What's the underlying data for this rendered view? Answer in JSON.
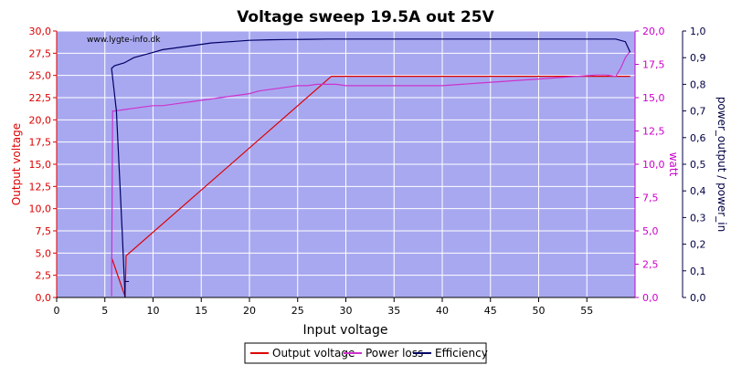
{
  "chart_data": {
    "type": "line",
    "title": "Voltage sweep 19.5A out 25V",
    "watermark": "www.lygte-info.dk",
    "xlabel": "Input voltage",
    "ylabel_left": "Output voltage",
    "ylabel_right1": "watt",
    "ylabel_right2": "power_output / power_in",
    "xlim": [
      0,
      60
    ],
    "xticks": [
      0,
      5,
      10,
      15,
      20,
      25,
      30,
      35,
      40,
      45,
      50,
      55
    ],
    "ylim_left": [
      0,
      30
    ],
    "yticks_left": [
      "0,0",
      "2,5",
      "5,0",
      "7,5",
      "10,0",
      "12,5",
      "15,0",
      "17,5",
      "20,0",
      "22,5",
      "25,0",
      "27,5",
      "30,0"
    ],
    "ylim_right1": [
      0,
      20
    ],
    "yticks_right1": [
      "0,0",
      "2,5",
      "5,0",
      "7,5",
      "10,0",
      "12,5",
      "15,0",
      "17,5",
      "20,0"
    ],
    "ylim_right2": [
      0,
      1
    ],
    "yticks_right2": [
      "0,0",
      "0,1",
      "0,2",
      "0,3",
      "0,4",
      "0,5",
      "0,6",
      "0,7",
      "0,8",
      "0,9",
      "1,0"
    ],
    "colors": {
      "plot_bg": "#a8a8f0",
      "output_voltage": "#dd0000",
      "power_loss": "#cc33cc",
      "efficiency": "#000066",
      "left_axis": "#dd0000",
      "right1_axis": "#cc00cc",
      "right2_axis": "#000044"
    },
    "legend": [
      "Output voltage",
      "Power loss",
      "Efficiency"
    ],
    "series": [
      {
        "name": "Output voltage",
        "axis": "left",
        "x": [
          5.7,
          7.1,
          7.2,
          28.5,
          59.5
        ],
        "y": [
          4.5,
          0.1,
          4.7,
          24.9,
          24.9
        ]
      },
      {
        "name": "Power loss",
        "axis": "right1",
        "x": [
          5.7,
          5.8,
          6,
          7,
          8,
          9,
          10,
          11,
          12,
          13,
          14,
          15,
          16,
          17,
          18,
          19,
          20,
          21,
          22,
          23,
          24,
          25,
          26,
          27,
          28,
          29,
          30,
          31,
          32,
          33,
          34,
          35,
          36,
          37,
          38,
          40,
          42,
          44,
          46,
          48,
          50,
          52,
          54,
          56,
          57,
          58,
          58.5,
          59,
          59.5
        ],
        "y": [
          0.1,
          14,
          14,
          14.1,
          14.2,
          14.3,
          14.4,
          14.4,
          14.5,
          14.6,
          14.7,
          14.8,
          14.9,
          15,
          15.1,
          15.2,
          15.3,
          15.5,
          15.6,
          15.7,
          15.8,
          15.9,
          15.9,
          16,
          16,
          16,
          15.9,
          15.9,
          15.9,
          15.9,
          15.9,
          15.9,
          15.9,
          15.9,
          15.9,
          15.9,
          16,
          16.1,
          16.2,
          16.3,
          16.4,
          16.5,
          16.6,
          16.7,
          16.7,
          16.6,
          17.2,
          18,
          18.5
        ]
      },
      {
        "name": "Efficiency",
        "axis": "right2",
        "x": [
          7.1,
          6.8,
          6.2,
          5.7,
          5.7,
          6,
          7,
          8,
          9,
          10,
          11,
          12,
          13,
          14,
          15,
          16,
          18,
          20,
          22,
          24,
          26,
          28,
          30,
          35,
          40,
          45,
          50,
          55,
          58,
          59,
          59.5
        ],
        "y": [
          0,
          0.25,
          0.7,
          0.86,
          0.86,
          0.87,
          0.88,
          0.9,
          0.91,
          0.92,
          0.93,
          0.935,
          0.94,
          0.945,
          0.95,
          0.955,
          0.96,
          0.965,
          0.967,
          0.968,
          0.969,
          0.97,
          0.97,
          0.97,
          0.97,
          0.97,
          0.97,
          0.97,
          0.97,
          0.96,
          0.92
        ]
      }
    ],
    "efficiency_stub": {
      "x": [
        7.1,
        7.5
      ],
      "y": [
        0.06,
        0.06
      ]
    }
  }
}
